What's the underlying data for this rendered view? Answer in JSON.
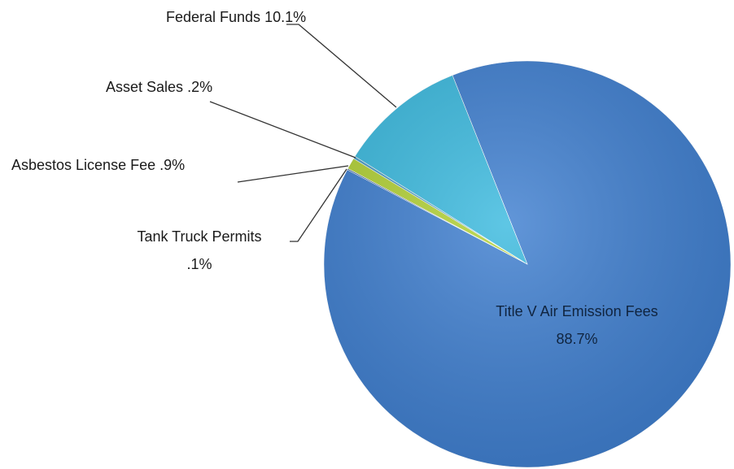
{
  "chart_data": {
    "type": "pie",
    "categories": [
      "Title V Air Emission Fees",
      "Tank Truck Permits",
      "Asbestos License Fee",
      "Asset Sales",
      "Federal Funds"
    ],
    "values": [
      88.7,
      0.1,
      0.9,
      0.2,
      10.1
    ],
    "value_labels": [
      "88.7%",
      ".1%",
      ".9%",
      ".2%",
      "10.1%"
    ],
    "colors": [
      "#3f7fd0",
      "#2d5c9a",
      "#b3d236",
      "#4a9cc6",
      "#3bbadf"
    ]
  }
}
